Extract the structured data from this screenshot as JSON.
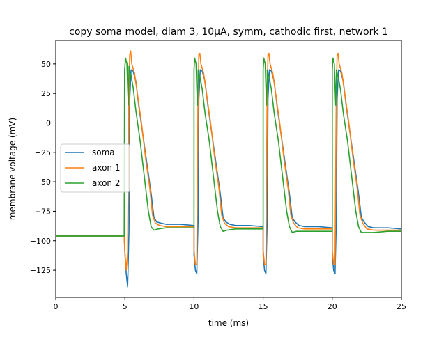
{
  "chart_data": {
    "type": "line",
    "title": "copy soma model, diam 3, 10μA, symm, cathodic first, network 1",
    "xlabel": "time (ms)",
    "ylabel": "membrane voltage (mV)",
    "xlim": [
      0,
      25
    ],
    "ylim": [
      -148,
      70
    ],
    "xticks": [
      0,
      5,
      10,
      15,
      20,
      25
    ],
    "yticks": [
      50,
      25,
      0,
      -25,
      -50,
      -75,
      -100,
      -125
    ],
    "legend_position": "center-left",
    "series": [
      {
        "name": "soma",
        "color": "#1f77b4",
        "x": [
          0,
          4.95,
          5.0,
          5.1,
          5.2,
          5.3,
          5.35,
          5.45,
          5.6,
          5.8,
          6.0,
          6.3,
          6.6,
          6.9,
          7.1,
          7.3,
          7.6,
          8.0,
          9.0,
          10.0,
          10.0,
          10.1,
          10.2,
          10.3,
          10.35,
          10.45,
          10.6,
          10.8,
          11.0,
          11.3,
          11.6,
          11.9,
          12.1,
          12.3,
          12.6,
          13.0,
          14.0,
          15.0,
          15.0,
          15.1,
          15.2,
          15.3,
          15.35,
          15.45,
          15.6,
          15.8,
          16.0,
          16.3,
          16.6,
          16.9,
          17.1,
          17.3,
          17.6,
          18.0,
          19.0,
          20.0,
          20.0,
          20.1,
          20.2,
          20.3,
          20.35,
          20.45,
          20.6,
          20.8,
          21.0,
          21.3,
          21.6,
          21.9,
          22.1,
          22.3,
          22.6,
          23.0,
          24.0,
          25.0
        ],
        "y": [
          -96,
          -96,
          -110,
          -128,
          -139,
          -90,
          20,
          45,
          44,
          35,
          15,
          -10,
          -35,
          -60,
          -80,
          -84,
          -85,
          -86,
          -86,
          -87,
          -112,
          -125,
          -128,
          -80,
          20,
          45,
          44,
          35,
          15,
          -10,
          -35,
          -60,
          -80,
          -84,
          -86,
          -87,
          -87,
          -88,
          -112,
          -125,
          -128,
          -80,
          20,
          45,
          44,
          35,
          15,
          -10,
          -35,
          -60,
          -80,
          -84,
          -87,
          -88,
          -88,
          -89,
          -112,
          -125,
          -128,
          -80,
          20,
          45,
          44,
          35,
          15,
          -10,
          -35,
          -60,
          -80,
          -84,
          -88,
          -89,
          -89,
          -90
        ]
      },
      {
        "name": "axon 1",
        "color": "#ff7f0e",
        "x": [
          0,
          4.95,
          5.0,
          5.1,
          5.2,
          5.28,
          5.35,
          5.42,
          5.5,
          5.7,
          5.9,
          6.2,
          6.5,
          6.8,
          7.0,
          7.2,
          7.5,
          8.0,
          9.0,
          10.0,
          10.0,
          10.1,
          10.2,
          10.28,
          10.35,
          10.42,
          10.5,
          10.7,
          10.9,
          11.2,
          11.5,
          11.8,
          12.0,
          12.2,
          12.5,
          13.0,
          14.0,
          15.0,
          15.0,
          15.1,
          15.2,
          15.28,
          15.35,
          15.42,
          15.5,
          15.7,
          15.9,
          16.2,
          16.5,
          16.8,
          17.0,
          17.2,
          17.5,
          18.0,
          19.0,
          20.0,
          20.0,
          20.1,
          20.2,
          20.28,
          20.35,
          20.42,
          20.5,
          20.7,
          20.9,
          21.2,
          21.5,
          21.8,
          22.0,
          22.2,
          22.5,
          23.0,
          24.0,
          25.0
        ],
        "y": [
          -96,
          -96,
          -110,
          -125,
          -110,
          10,
          58,
          61,
          50,
          42,
          25,
          0,
          -30,
          -55,
          -78,
          -85,
          -87,
          -88,
          -88,
          -88,
          -108,
          -120,
          -120,
          10,
          58,
          59,
          50,
          42,
          25,
          0,
          -30,
          -55,
          -78,
          -85,
          -88,
          -89,
          -89,
          -89,
          -108,
          -120,
          -120,
          10,
          58,
          59,
          50,
          42,
          25,
          0,
          -30,
          -55,
          -78,
          -85,
          -89,
          -90,
          -90,
          -90,
          -108,
          -120,
          -120,
          10,
          58,
          59,
          50,
          42,
          25,
          0,
          -30,
          -55,
          -78,
          -85,
          -90,
          -91,
          -91,
          -91
        ]
      },
      {
        "name": "axon 2",
        "color": "#2ca02c",
        "x": [
          0,
          4.95,
          4.98,
          5.05,
          5.15,
          5.2,
          5.25,
          5.3,
          5.38,
          5.45,
          5.6,
          5.8,
          6.1,
          6.4,
          6.7,
          6.9,
          7.1,
          7.4,
          8.0,
          9.0,
          10.0,
          10.0,
          10.05,
          10.15,
          10.2,
          10.25,
          10.3,
          10.38,
          10.45,
          10.6,
          10.8,
          11.1,
          11.4,
          11.7,
          11.9,
          12.1,
          12.4,
          13.0,
          14.0,
          15.0,
          15.0,
          15.05,
          15.15,
          15.2,
          15.25,
          15.3,
          15.38,
          15.45,
          15.6,
          15.8,
          16.1,
          16.4,
          16.7,
          16.9,
          17.1,
          17.4,
          18.0,
          19.0,
          20.0,
          20.0,
          20.05,
          20.15,
          20.2,
          20.25,
          20.3,
          20.38,
          20.45,
          20.6,
          20.8,
          21.1,
          21.4,
          21.7,
          21.9,
          22.1,
          22.4,
          23.0,
          24.0,
          25.0
        ],
        "y": [
          -96,
          -96,
          45,
          55,
          50,
          30,
          15,
          48,
          42,
          40,
          30,
          10,
          -15,
          -45,
          -75,
          -88,
          -91,
          -90,
          -89,
          -89,
          -89,
          45,
          55,
          50,
          30,
          15,
          45,
          40,
          38,
          28,
          8,
          -15,
          -45,
          -75,
          -88,
          -92,
          -91,
          -90,
          -90,
          -90,
          45,
          55,
          50,
          30,
          15,
          45,
          40,
          38,
          28,
          8,
          -15,
          -45,
          -75,
          -88,
          -93,
          -92,
          -92,
          -92,
          -92,
          45,
          55,
          50,
          30,
          15,
          45,
          40,
          38,
          28,
          8,
          -15,
          -45,
          -75,
          -88,
          -93,
          -93,
          -93,
          -92,
          -92
        ]
      }
    ]
  }
}
